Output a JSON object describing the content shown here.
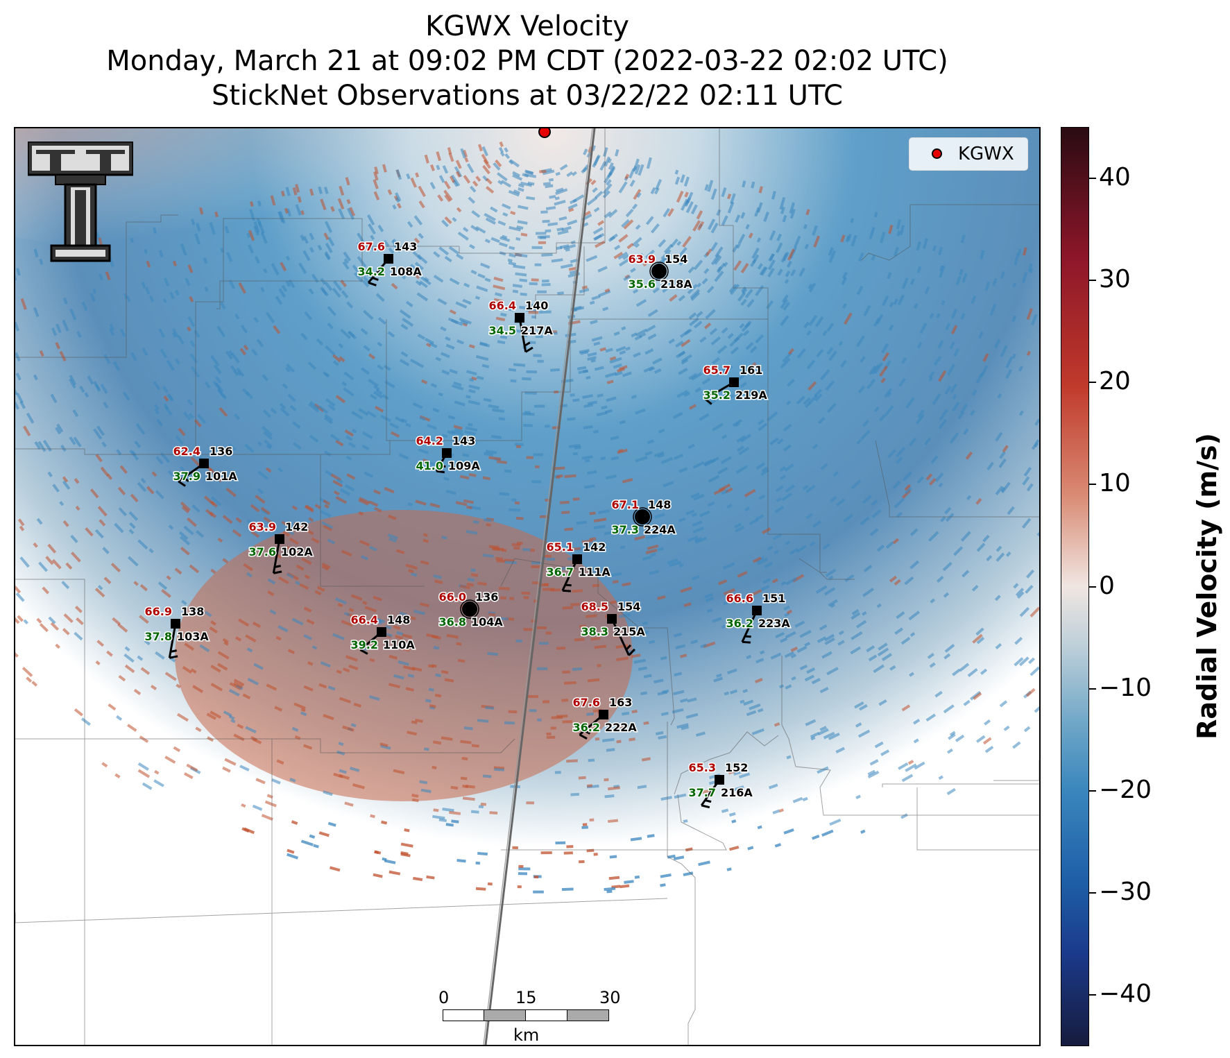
{
  "title": {
    "line1": "KGWX Velocity",
    "line2": "Monday, March 21 at 09:02 PM CDT (2022-03-22 02:02 UTC)",
    "line3": "StickNet Observations at 03/22/22 02:11 UTC"
  },
  "legend": {
    "label": "KGWX",
    "marker_color": "#e60000"
  },
  "colorbar": {
    "title": "Radial Velocity (m/s)",
    "range": [
      -45,
      45
    ],
    "ticks": [
      "40",
      "30",
      "20",
      "10",
      "0",
      "−10",
      "−20",
      "−30",
      "−40"
    ]
  },
  "scalebar": {
    "labels": [
      "0",
      "15",
      "30"
    ],
    "unit": "km"
  },
  "colors": {
    "temperature": "#b00000",
    "dewpoint": "#006600",
    "outbound": "#c0502e",
    "inbound": "#3a86bd"
  },
  "stations": [
    {
      "id": "108A",
      "temp": "67.6",
      "dew": "34.2",
      "pressure": "143",
      "marker": "square"
    },
    {
      "id": "218A",
      "temp": "63.9",
      "dew": "35.6",
      "pressure": "154",
      "marker": "circle"
    },
    {
      "id": "217A",
      "temp": "66.4",
      "dew": "34.5",
      "pressure": "140",
      "marker": "square"
    },
    {
      "id": "219A",
      "temp": "65.7",
      "dew": "35.2",
      "pressure": "161",
      "marker": "square"
    },
    {
      "id": "101A",
      "temp": "62.4",
      "dew": "37.9",
      "pressure": "136",
      "marker": "square"
    },
    {
      "id": "109A",
      "temp": "64.2",
      "dew": "41.0",
      "pressure": "143",
      "marker": "square"
    },
    {
      "id": "224A",
      "temp": "67.1",
      "dew": "37.3",
      "pressure": "148",
      "marker": "circle"
    },
    {
      "id": "102A",
      "temp": "63.9",
      "dew": "37.6",
      "pressure": "142",
      "marker": "square"
    },
    {
      "id": "111A",
      "temp": "65.1",
      "dew": "36.7",
      "pressure": "142",
      "marker": "square"
    },
    {
      "id": "104A",
      "temp": "66.0",
      "dew": "36.8",
      "pressure": "136",
      "marker": "circle"
    },
    {
      "id": "103A",
      "temp": "66.9",
      "dew": "37.8",
      "pressure": "138",
      "marker": "square"
    },
    {
      "id": "110A",
      "temp": "66.4",
      "dew": "39.2",
      "pressure": "148",
      "marker": "square"
    },
    {
      "id": "215A",
      "temp": "68.5",
      "dew": "38.3",
      "pressure": "154",
      "marker": "square"
    },
    {
      "id": "223A",
      "temp": "66.6",
      "dew": "36.2",
      "pressure": "151",
      "marker": "square"
    },
    {
      "id": "222A",
      "temp": "67.6",
      "dew": "36.2",
      "pressure": "163",
      "marker": "square"
    },
    {
      "id": "216A",
      "temp": "65.3",
      "dew": "37.7",
      "pressure": "152",
      "marker": "square"
    }
  ]
}
